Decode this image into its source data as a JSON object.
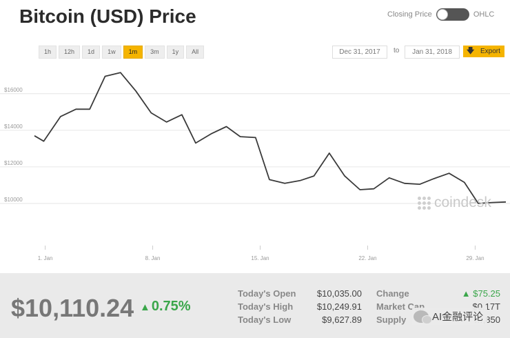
{
  "header": {
    "title": "Bitcoin (USD) Price",
    "toggle_left": "Closing Price",
    "toggle_right": "OHLC"
  },
  "ranges": [
    {
      "label": "1h",
      "active": false
    },
    {
      "label": "12h",
      "active": false
    },
    {
      "label": "1d",
      "active": false
    },
    {
      "label": "1w",
      "active": false
    },
    {
      "label": "1m",
      "active": true
    },
    {
      "label": "3m",
      "active": false
    },
    {
      "label": "1y",
      "active": false
    },
    {
      "label": "All",
      "active": false
    }
  ],
  "date_range": {
    "from": "Dec 31, 2017",
    "to_label": "to",
    "to": "Jan 31, 2018",
    "export_label": "Export"
  },
  "colors": {
    "accent": "#f5b400",
    "line": "#3a3a3a",
    "positive": "#3aa64a"
  },
  "watermark": "coindesk",
  "chart_data": {
    "type": "line",
    "x_unit": "day of January 2018",
    "xlim": [
      0.3,
      31
    ],
    "ylim": [
      8000,
      17800
    ],
    "yticks": [
      10000,
      12000,
      14000,
      16000
    ],
    "ytick_labels": [
      "$10000",
      "$12000",
      "$14000",
      "$16000"
    ],
    "xticks": [
      1,
      8,
      15,
      22,
      29
    ],
    "xtick_labels": [
      "1. Jan",
      "8. Jan",
      "15. Jan",
      "22. Jan",
      "29. Jan"
    ],
    "grid": true,
    "x": [
      0.3,
      0.9,
      2.0,
      3.0,
      3.9,
      4.9,
      5.9,
      6.9,
      7.9,
      8.9,
      9.9,
      10.8,
      11.8,
      12.8,
      13.7,
      14.7,
      15.6,
      16.6,
      17.6,
      18.5,
      19.5,
      20.5,
      21.5,
      22.4,
      23.4,
      24.4,
      25.4,
      26.3,
      27.3,
      28.3,
      29.2,
      30.1,
      31.0
    ],
    "values": [
      13700,
      13400,
      14750,
      15150,
      15150,
      16950,
      17150,
      16150,
      14950,
      14450,
      14850,
      13300,
      13800,
      14200,
      13650,
      13600,
      11300,
      11100,
      11250,
      11500,
      12750,
      11500,
      10750,
      10800,
      11400,
      11100,
      11050,
      11350,
      11650,
      11150,
      10000,
      10050,
      10080
    ]
  },
  "stats": {
    "price": "$10,110.24",
    "change_pct": "0.75%",
    "open_label": "Today's Open",
    "open_value": "$10,035.00",
    "high_label": "Today's High",
    "high_value": "$10,249.91",
    "low_label": "Today's Low",
    "low_value": "$9,627.89",
    "change_label": "Change",
    "change_value": "$75.25",
    "mcap_label": "Market Cap",
    "mcap_value": "$0.17T",
    "supply_label": "Supply",
    "supply_value": "…,850"
  },
  "overlay_badge": "AI金融评论"
}
